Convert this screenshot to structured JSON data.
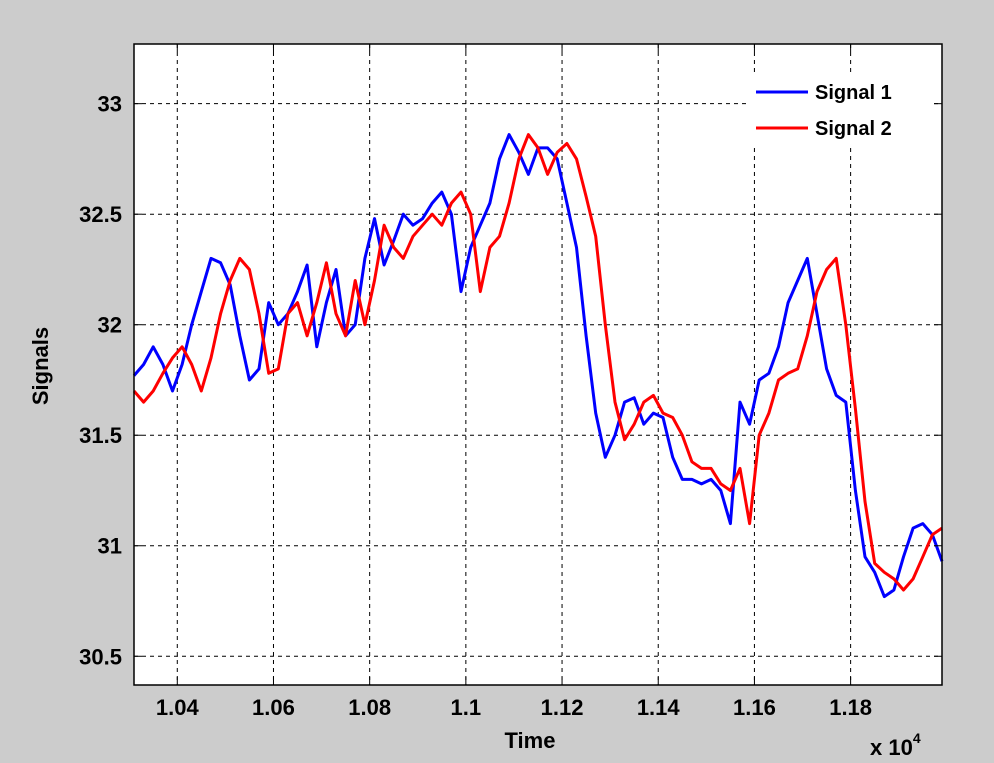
{
  "chart_data": {
    "type": "line",
    "title": "",
    "xlabel": "Time",
    "ylabel": "Signals",
    "x_exponent_label": "x 10",
    "x_exponent_power": "4",
    "xlim": [
      1.031,
      1.199
    ],
    "ylim": [
      30.37,
      33.27
    ],
    "xticks": [
      1.04,
      1.06,
      1.08,
      1.1,
      1.12,
      1.14,
      1.16,
      1.18
    ],
    "xtick_labels": [
      "1.04",
      "1.06",
      "1.08",
      "1.1",
      "1.12",
      "1.14",
      "1.16",
      "1.18"
    ],
    "yticks": [
      30.5,
      31,
      31.5,
      32,
      32.5,
      33
    ],
    "ytick_labels": [
      "30.5",
      "31",
      "31.5",
      "32",
      "32.5",
      "33"
    ],
    "grid": true,
    "legend_position": "top-right",
    "colors": {
      "figure_bg": "#cccccc",
      "axes_bg": "#ffffff",
      "grid": "#000000"
    },
    "series": [
      {
        "name": "Signal 1",
        "color": "#0000ff",
        "x": [
          1.031,
          1.033,
          1.035,
          1.037,
          1.039,
          1.041,
          1.043,
          1.045,
          1.047,
          1.049,
          1.051,
          1.053,
          1.055,
          1.057,
          1.059,
          1.061,
          1.063,
          1.065,
          1.067,
          1.069,
          1.071,
          1.073,
          1.075,
          1.077,
          1.079,
          1.081,
          1.083,
          1.085,
          1.087,
          1.089,
          1.091,
          1.093,
          1.095,
          1.097,
          1.099,
          1.101,
          1.103,
          1.105,
          1.107,
          1.109,
          1.111,
          1.113,
          1.115,
          1.117,
          1.119,
          1.121,
          1.123,
          1.125,
          1.127,
          1.129,
          1.131,
          1.133,
          1.135,
          1.137,
          1.139,
          1.141,
          1.143,
          1.145,
          1.147,
          1.149,
          1.151,
          1.153,
          1.155,
          1.157,
          1.159,
          1.161,
          1.163,
          1.165,
          1.167,
          1.169,
          1.171,
          1.173,
          1.175,
          1.177,
          1.179,
          1.181,
          1.183,
          1.185,
          1.187,
          1.189,
          1.191,
          1.193,
          1.195,
          1.197,
          1.199
        ],
        "y": [
          31.77,
          31.82,
          31.9,
          31.82,
          31.7,
          31.82,
          32.0,
          32.15,
          32.3,
          32.28,
          32.18,
          31.95,
          31.75,
          31.8,
          32.1,
          32.0,
          32.05,
          32.15,
          32.27,
          31.9,
          32.1,
          32.25,
          31.95,
          32.0,
          32.3,
          32.48,
          32.27,
          32.38,
          32.5,
          32.45,
          32.48,
          32.55,
          32.6,
          32.5,
          32.15,
          32.35,
          32.45,
          32.55,
          32.75,
          32.86,
          32.78,
          32.68,
          32.8,
          32.8,
          32.75,
          32.55,
          32.35,
          31.95,
          31.6,
          31.4,
          31.5,
          31.65,
          31.67,
          31.55,
          31.6,
          31.58,
          31.4,
          31.3,
          31.3,
          31.28,
          31.3,
          31.25,
          31.1,
          31.65,
          31.55,
          31.75,
          31.78,
          31.9,
          32.1,
          32.2,
          32.3,
          32.05,
          31.8,
          31.68,
          31.65,
          31.25,
          30.95,
          30.88,
          30.77,
          30.8,
          30.95,
          31.08,
          31.1,
          31.05,
          30.93
        ]
      },
      {
        "name": "Signal 2",
        "color": "#ff0000",
        "x": [
          1.031,
          1.033,
          1.035,
          1.037,
          1.039,
          1.041,
          1.043,
          1.045,
          1.047,
          1.049,
          1.051,
          1.053,
          1.055,
          1.057,
          1.059,
          1.061,
          1.063,
          1.065,
          1.067,
          1.069,
          1.071,
          1.073,
          1.075,
          1.077,
          1.079,
          1.081,
          1.083,
          1.085,
          1.087,
          1.089,
          1.091,
          1.093,
          1.095,
          1.097,
          1.099,
          1.101,
          1.103,
          1.105,
          1.107,
          1.109,
          1.111,
          1.113,
          1.115,
          1.117,
          1.119,
          1.121,
          1.123,
          1.125,
          1.127,
          1.129,
          1.131,
          1.133,
          1.135,
          1.137,
          1.139,
          1.141,
          1.143,
          1.145,
          1.147,
          1.149,
          1.151,
          1.153,
          1.155,
          1.157,
          1.159,
          1.161,
          1.163,
          1.165,
          1.167,
          1.169,
          1.171,
          1.173,
          1.175,
          1.177,
          1.179,
          1.181,
          1.183,
          1.185,
          1.187,
          1.189,
          1.191,
          1.193,
          1.195,
          1.197,
          1.199
        ],
        "y": [
          31.7,
          31.65,
          31.7,
          31.78,
          31.85,
          31.9,
          31.82,
          31.7,
          31.85,
          32.05,
          32.2,
          32.3,
          32.25,
          32.05,
          31.78,
          31.8,
          32.05,
          32.1,
          31.95,
          32.1,
          32.28,
          32.05,
          31.95,
          32.2,
          32.0,
          32.2,
          32.45,
          32.35,
          32.3,
          32.4,
          32.45,
          32.5,
          32.45,
          32.55,
          32.6,
          32.5,
          32.15,
          32.35,
          32.4,
          32.55,
          32.75,
          32.86,
          32.8,
          32.68,
          32.78,
          32.82,
          32.75,
          32.58,
          32.4,
          32.0,
          31.65,
          31.48,
          31.55,
          31.65,
          31.68,
          31.6,
          31.58,
          31.5,
          31.38,
          31.35,
          31.35,
          31.28,
          31.25,
          31.35,
          31.1,
          31.5,
          31.6,
          31.75,
          31.78,
          31.8,
          31.95,
          32.15,
          32.25,
          32.3,
          32.0,
          31.62,
          31.2,
          30.92,
          30.88,
          30.85,
          30.8,
          30.85,
          30.95,
          31.05,
          31.08
        ]
      }
    ]
  }
}
